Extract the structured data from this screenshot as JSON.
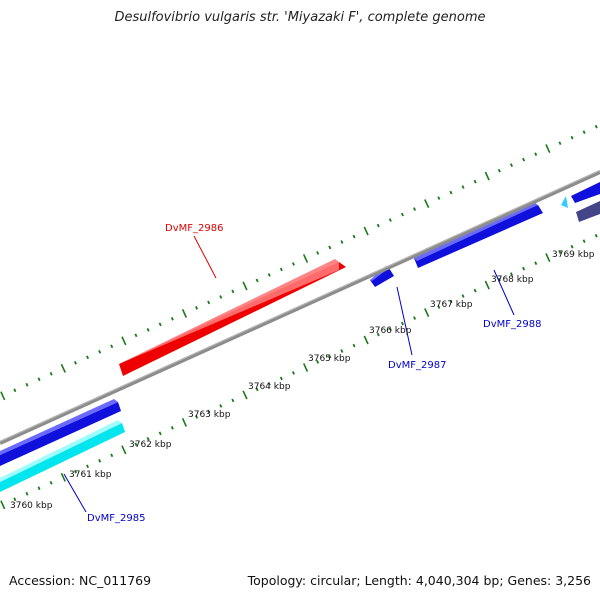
{
  "title": "Desulfovibrio vulgaris str. 'Miyazaki F', complete genome",
  "footer": {
    "accession": "Accession: NC_011769",
    "topology": "Topology: circular; Length: 4,040,304 bp; Genes: 3,256"
  },
  "colors": {
    "backbone": "#8c8c8c",
    "tick": "#1a7a1a",
    "gene_red": "#ee0000",
    "gene_blue": "#1010dd",
    "gene_cyan": "#00e5ee",
    "gene_navy": "#444488",
    "gene_light": "#33ccff",
    "label_red": "#dd0000",
    "label_blue": "#0000cc"
  },
  "scale_labels": [
    "3760 kbp",
    "3761 kbp",
    "3762 kbp",
    "3763 kbp",
    "3764 kbp",
    "3765 kbp",
    "3766 kbp",
    "3767 kbp",
    "3768 kbp",
    "3769 kbp"
  ],
  "gene_labels": [
    {
      "id": "DvMF_2985",
      "color": "blue"
    },
    {
      "id": "DvMF_2986",
      "color": "red"
    },
    {
      "id": "DvMF_2987",
      "color": "blue"
    },
    {
      "id": "DvMF_2988",
      "color": "blue"
    }
  ]
}
